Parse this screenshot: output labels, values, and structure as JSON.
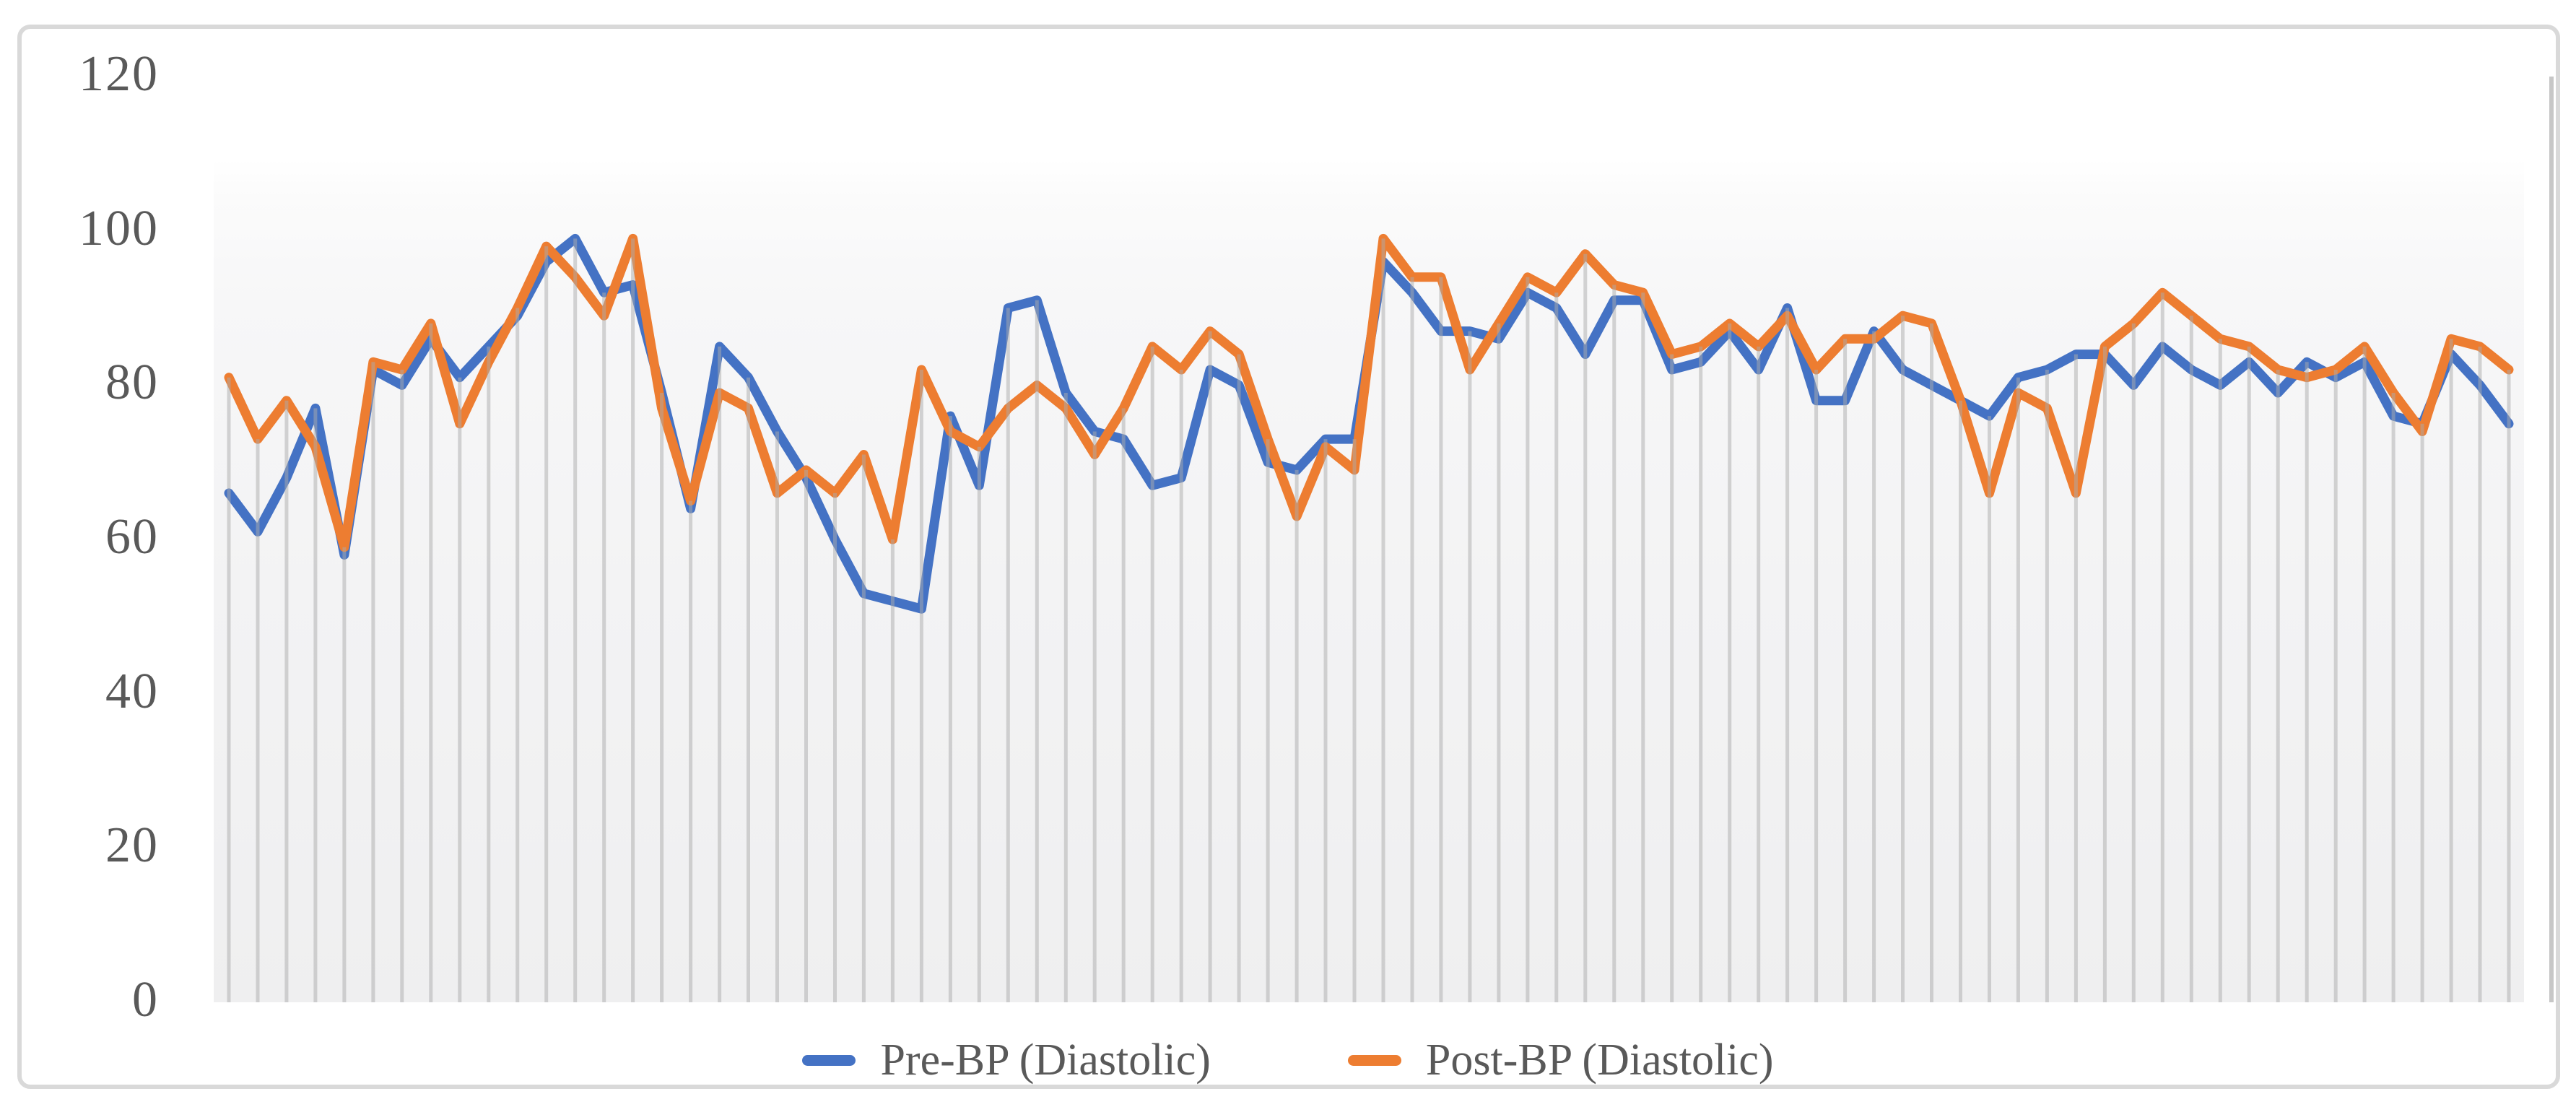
{
  "chart_data": {
    "type": "line",
    "title": "",
    "point_count": 80,
    "x_axis": {
      "label": "",
      "tick_labels_visible": false
    },
    "y_axis": {
      "label": "",
      "range": [
        0,
        120
      ],
      "ticks": [
        0,
        20,
        40,
        60,
        80,
        100,
        120
      ],
      "tick_labels": [
        "0",
        "20",
        "40",
        "60",
        "80",
        "100",
        "120"
      ]
    },
    "grid": {
      "horizontal": false,
      "vertical_drop_lines": true
    },
    "legend_position": "bottom",
    "series": [
      {
        "name": "Pre-BP (Diastolic)",
        "color": "#4472C4",
        "values": [
          66,
          61,
          68,
          77,
          58,
          82,
          80,
          86,
          81,
          85,
          89,
          96,
          99,
          92,
          93,
          79,
          64,
          85,
          81,
          74,
          68,
          60,
          53,
          52,
          51,
          76,
          67,
          90,
          91,
          79,
          74,
          73,
          67,
          68,
          82,
          80,
          70,
          69,
          73,
          73,
          96,
          92,
          87,
          87,
          86,
          92,
          90,
          84,
          91,
          91,
          82,
          83,
          87,
          82,
          90,
          78,
          78,
          87,
          82,
          80,
          78,
          76,
          81,
          82,
          84,
          84,
          80,
          85,
          82,
          80,
          83,
          79,
          83,
          81,
          83,
          76,
          75,
          84,
          80,
          75
        ]
      },
      {
        "name": "Post-BP (Diastolic)",
        "color": "#ED7D31",
        "values": [
          81,
          73,
          78,
          72,
          59,
          83,
          82,
          88,
          75,
          83,
          90,
          98,
          94,
          89,
          99,
          77,
          65,
          79,
          77,
          66,
          69,
          66,
          71,
          60,
          82,
          74,
          72,
          77,
          80,
          77,
          71,
          77,
          85,
          82,
          87,
          84,
          73,
          63,
          72,
          69,
          99,
          94,
          94,
          82,
          88,
          94,
          92,
          97,
          93,
          92,
          84,
          85,
          88,
          85,
          89,
          82,
          86,
          86,
          89,
          88,
          78,
          66,
          79,
          77,
          66,
          85,
          88,
          92,
          89,
          86,
          85,
          82,
          81,
          82,
          85,
          79,
          74,
          86,
          85,
          82
        ]
      }
    ],
    "colors": {
      "pre_line": "#4472C4",
      "post_line": "#ED7D31",
      "drop_line": "#d6d6d6",
      "axis_text": "#595959",
      "chart_border": "#d9d9d9"
    }
  },
  "legend": {
    "pre_label": "Pre-BP (Diastolic)",
    "post_label": "Post-BP (Diastolic)"
  }
}
